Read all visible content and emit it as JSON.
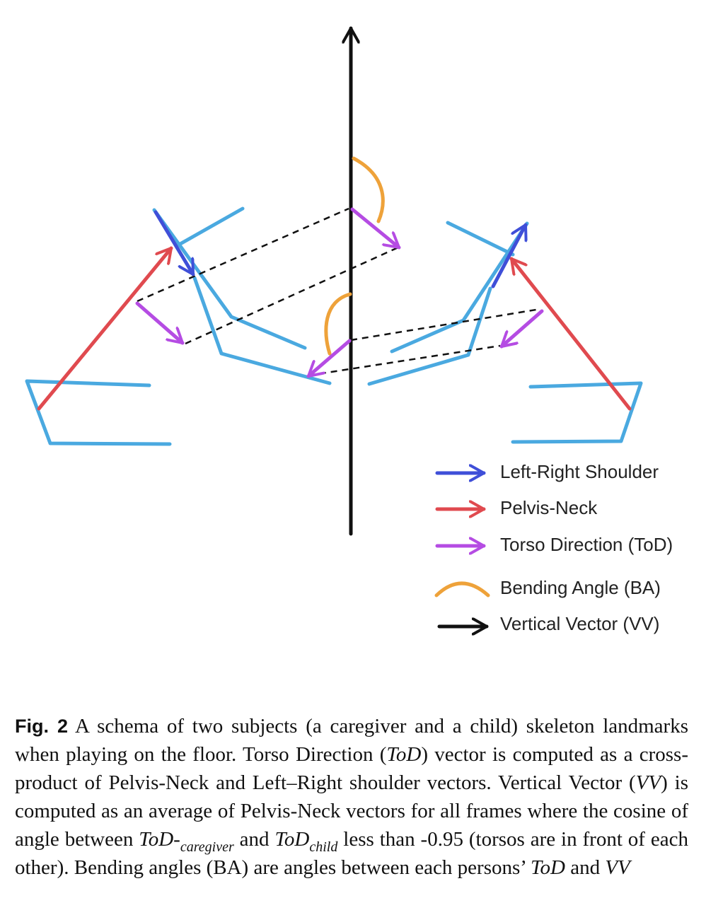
{
  "colors": {
    "skeleton": "#4aa9e0",
    "left_right_shoulder": "#3f4fd8",
    "pelvis_neck": "#e04a4f",
    "torso_direction": "#b54ce3",
    "bending_angle": "#eea23a",
    "vertical_vector": "#111111",
    "dashed_line": "#111111"
  },
  "legend": {
    "items": [
      {
        "key": "left_right_shoulder",
        "label": "Left-Right Shoulder",
        "icon": "arrow-icon"
      },
      {
        "key": "pelvis_neck",
        "label": "Pelvis-Neck",
        "icon": "arrow-icon"
      },
      {
        "key": "torso_direction",
        "label": "Torso Direction (ToD)",
        "icon": "arrow-icon"
      },
      {
        "key": "bending_angle",
        "label": "Bending Angle (BA)",
        "icon": "arc-icon"
      },
      {
        "key": "vertical_vector",
        "label": "Vertical Vector (VV)",
        "icon": "arrow-icon"
      }
    ]
  },
  "caption": {
    "figure_label": "Fig. 2",
    "part1": "A schema of two subjects (a caregiver and a child) skeleton landmarks when playing on the floor. Torso Direction (",
    "tod1": "ToD",
    "part2": ") vector is computed as a cross-product of Pelvis-Neck and Left–Right shoulder vectors. Vertical Vector (",
    "vv1": "VV",
    "part3": ") is computed as an average of Pelvis-Neck vectors for all frames where the cosine of angle between ",
    "tod2": "ToD",
    "dash": "-",
    "sub_caregiver": "caregiver",
    "and1": " and ",
    "tod3": "ToD",
    "sub_child": "child",
    "part4": " less than -0.95 (torsos are in front of each other). Bending angles (BA) are angles between each persons’ ",
    "tod4": "ToD",
    "and2": " and ",
    "vv2": "VV"
  }
}
